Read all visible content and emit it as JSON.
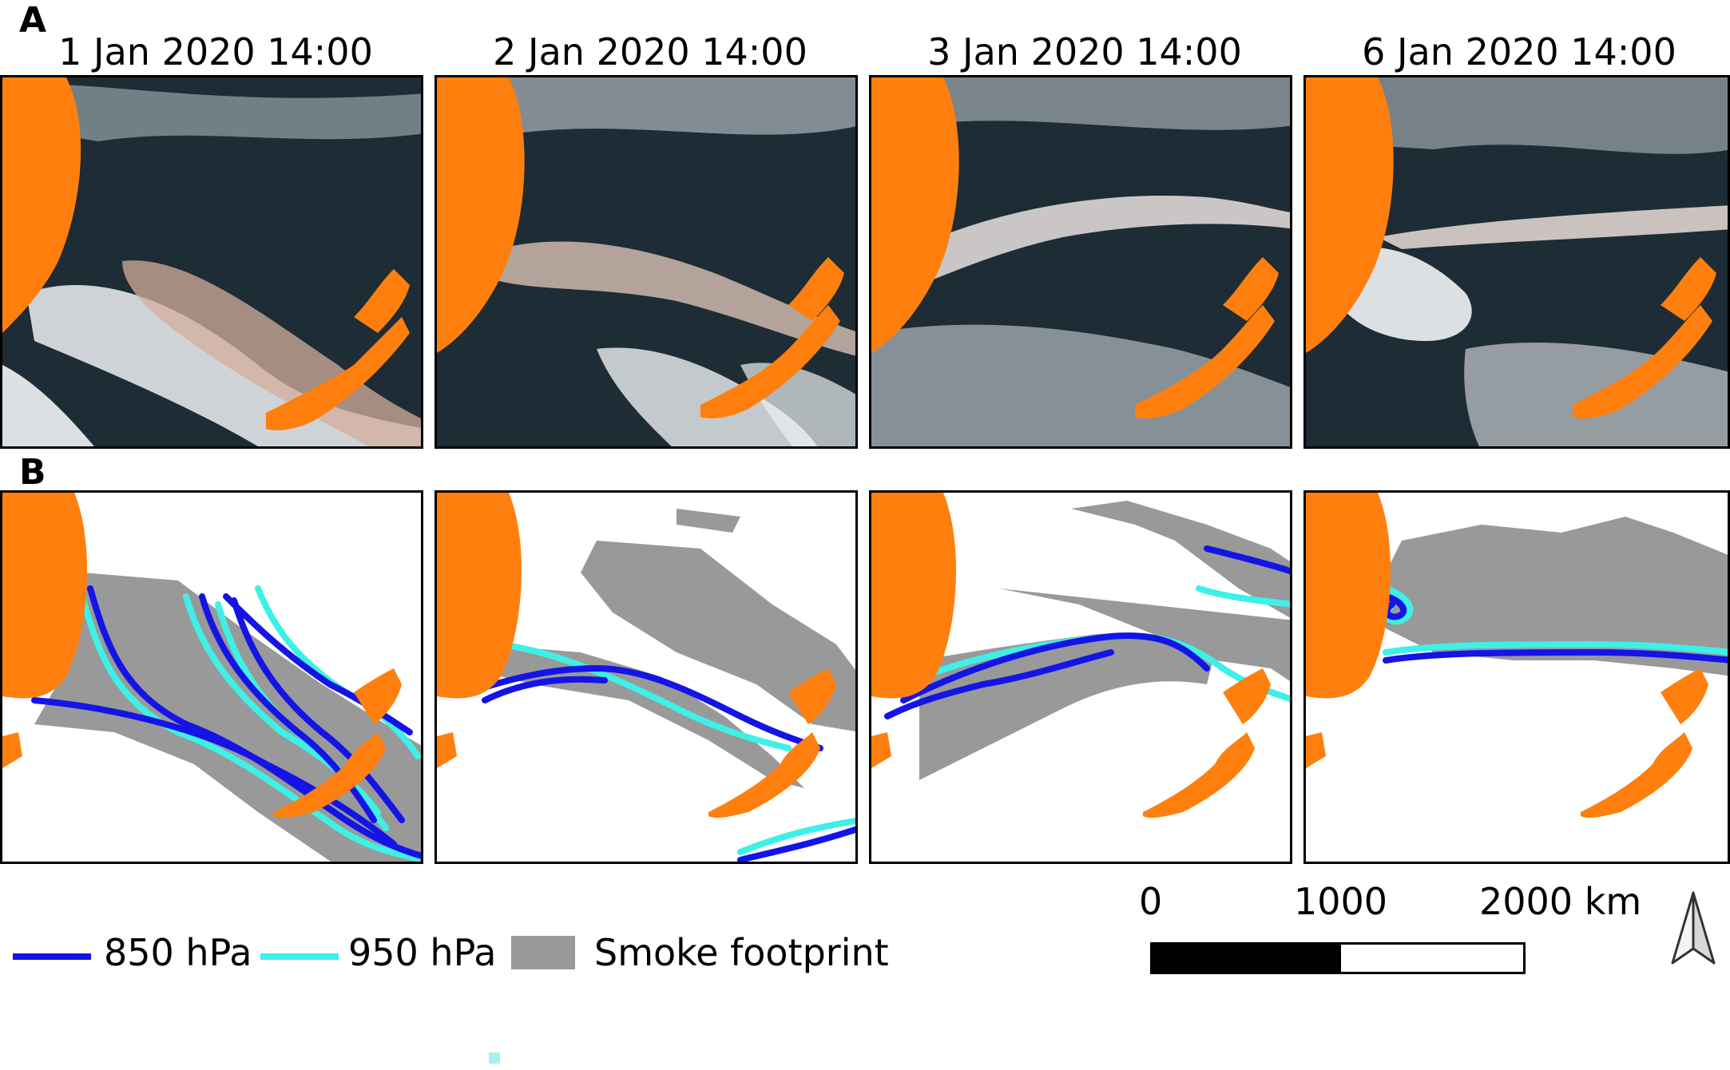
{
  "panels": {
    "a": "A",
    "b": "B"
  },
  "dates": [
    "1 Jan 2020 14:00",
    "2 Jan 2020 14:00",
    "3 Jan 2020 14:00",
    "6 Jan 2020 14:00"
  ],
  "legend": {
    "items": [
      {
        "label": "850 hPa",
        "color": "#1414e6"
      },
      {
        "label": "950 hPa",
        "color": "#3ef0e6"
      },
      {
        "label": "Smoke footprint",
        "color": "#999999"
      }
    ]
  },
  "scale_bar": {
    "labels": [
      "0",
      "1000",
      "2000 km"
    ]
  },
  "colors": {
    "land": "#ff7f0e",
    "ocean": "#1b2a33",
    "cloud": "#f4f6f8",
    "smoke": "#c8a99a",
    "footprint": "#999999"
  }
}
